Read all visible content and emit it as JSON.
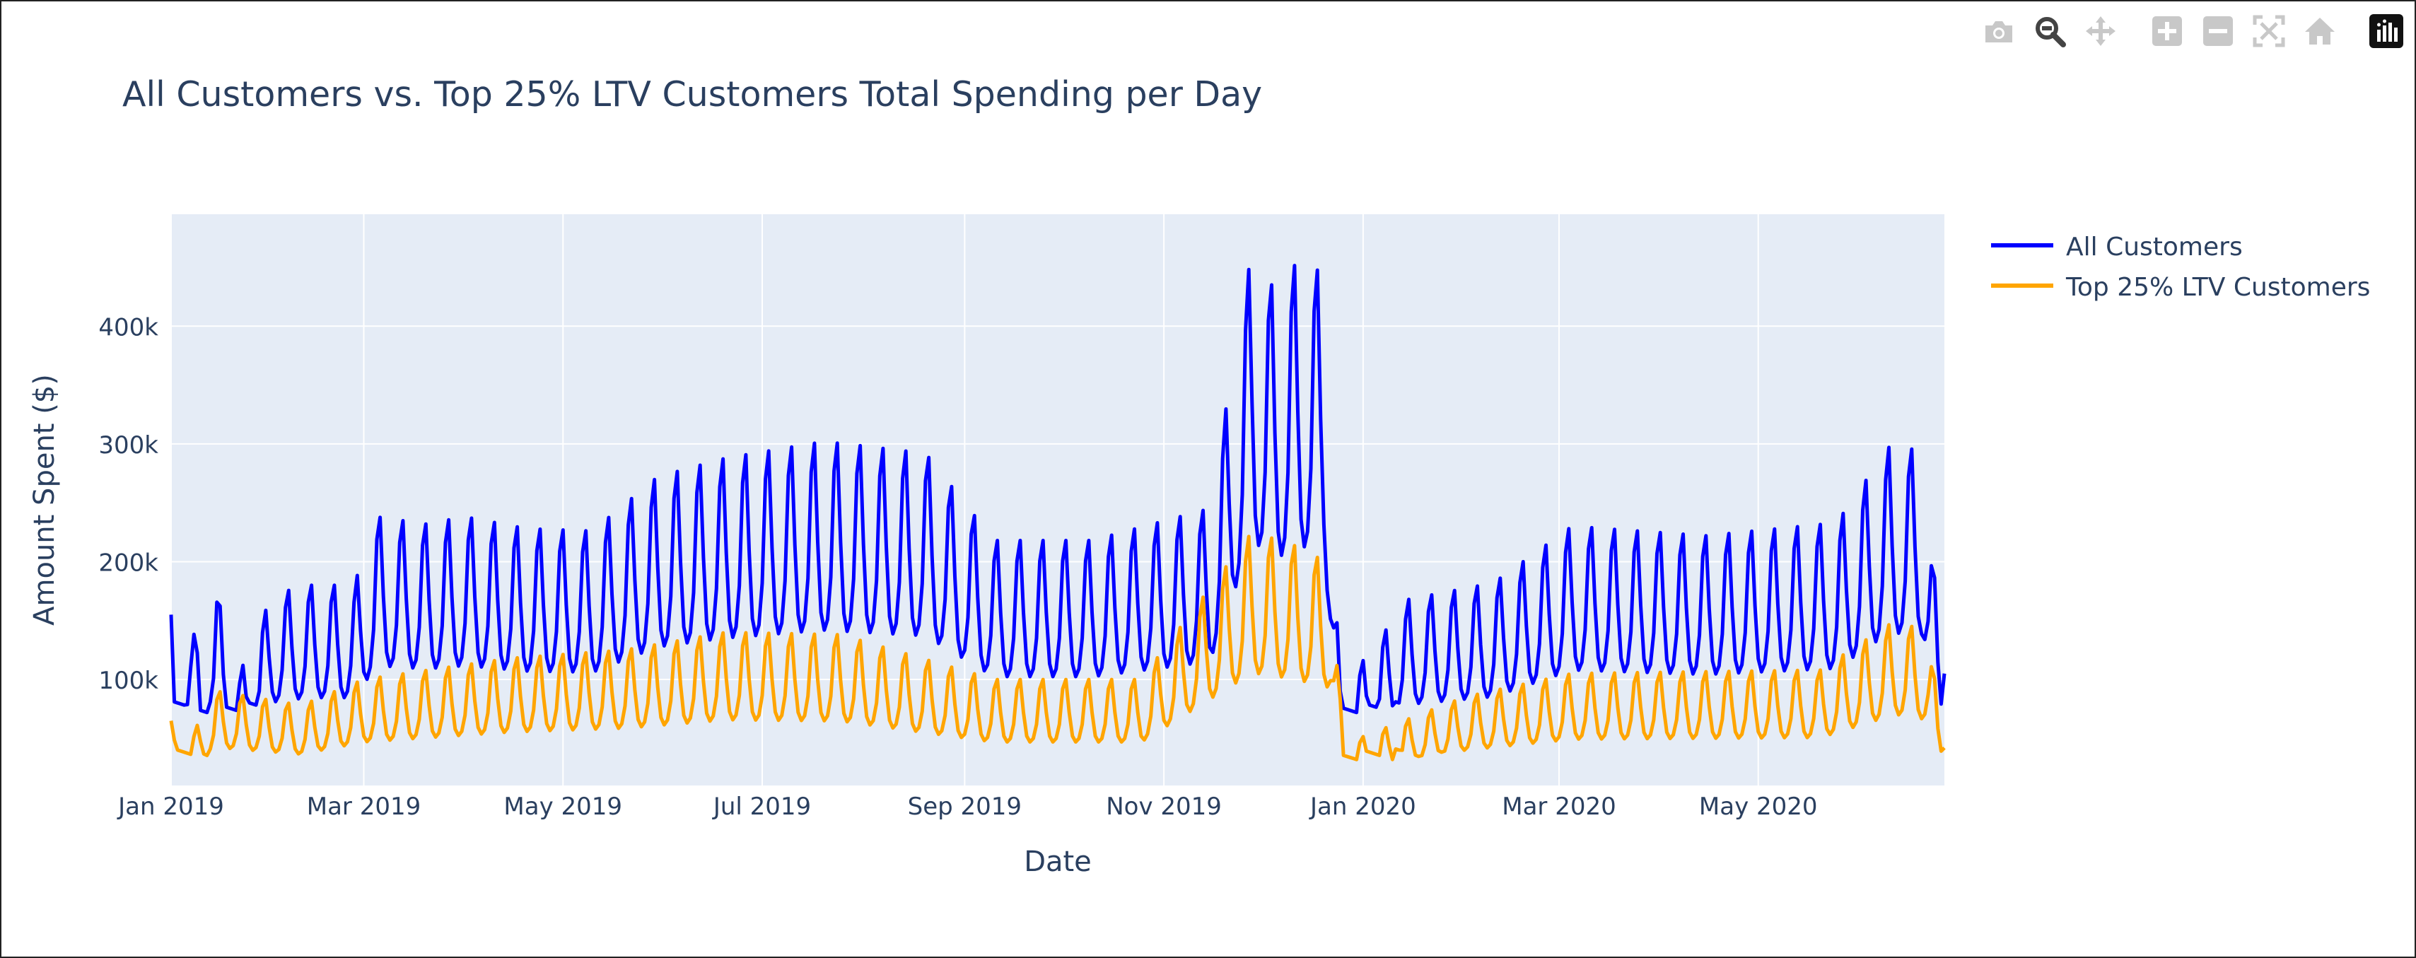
{
  "modebar": {
    "buttons": [
      {
        "icon": "camera-icon",
        "label": "Download plot as a png"
      },
      {
        "icon": "zoom-icon",
        "label": "Zoom"
      },
      {
        "icon": "pan-icon",
        "label": "Pan"
      },
      {
        "icon": "zoom-in-icon",
        "label": "Zoom in"
      },
      {
        "icon": "zoom-out-icon",
        "label": "Zoom out"
      },
      {
        "icon": "autoscale-icon",
        "label": "Autoscale"
      },
      {
        "icon": "reset-axes-icon",
        "label": "Reset axes"
      },
      {
        "icon": "plotly-logo-icon",
        "label": "Produced with Plotly"
      }
    ]
  },
  "chart_data": {
    "type": "line",
    "title": "All Customers vs. Top 25% LTV Customers Total Spending per Day",
    "xlabel": "Date",
    "ylabel": "Amount Spent ($)",
    "xlim": [
      "2019-01-01",
      "2020-06-27"
    ],
    "ylim": [
      10000,
      495000
    ],
    "x_ticks": [
      {
        "date": "2019-01-01",
        "label": "Jan 2019"
      },
      {
        "date": "2019-03-01",
        "label": "Mar 2019"
      },
      {
        "date": "2019-05-01",
        "label": "May 2019"
      },
      {
        "date": "2019-07-01",
        "label": "Jul 2019"
      },
      {
        "date": "2019-09-01",
        "label": "Sep 2019"
      },
      {
        "date": "2019-11-01",
        "label": "Nov 2019"
      },
      {
        "date": "2020-01-01",
        "label": "Jan 2020"
      },
      {
        "date": "2020-03-01",
        "label": "Mar 2020"
      },
      {
        "date": "2020-05-01",
        "label": "May 2020"
      }
    ],
    "y_ticks": [
      {
        "value": 100000,
        "label": "100k"
      },
      {
        "value": 200000,
        "label": "200k"
      },
      {
        "value": 300000,
        "label": "300k"
      },
      {
        "value": 400000,
        "label": "400k"
      }
    ],
    "grid": true,
    "legend_position": "top-right",
    "plot_bgcolor": "#e5ecf6",
    "series": [
      {
        "name": "All Customers",
        "color": "#0000ff",
        "sampled_points": [
          {
            "x": "2019-01-01",
            "y": 155000
          },
          {
            "x": "2019-01-02",
            "y": 75000
          },
          {
            "x": "2019-01-07",
            "y": 178000
          },
          {
            "x": "2019-01-10",
            "y": 95000
          },
          {
            "x": "2019-01-15",
            "y": 180000
          },
          {
            "x": "2019-01-20",
            "y": 92000
          },
          {
            "x": "2019-02-01",
            "y": 172000
          },
          {
            "x": "2019-02-12",
            "y": 180000
          },
          {
            "x": "2019-02-26",
            "y": 180000
          },
          {
            "x": "2019-03-05",
            "y": 238000
          },
          {
            "x": "2019-03-20",
            "y": 232000
          },
          {
            "x": "2019-04-01",
            "y": 238000
          },
          {
            "x": "2019-04-20",
            "y": 228000
          },
          {
            "x": "2019-05-10",
            "y": 226000
          },
          {
            "x": "2019-05-30",
            "y": 272000
          },
          {
            "x": "2019-06-20",
            "y": 288000
          },
          {
            "x": "2019-07-20",
            "y": 302000
          },
          {
            "x": "2019-08-20",
            "y": 292000
          },
          {
            "x": "2019-09-10",
            "y": 218000
          },
          {
            "x": "2019-10-10",
            "y": 218000
          },
          {
            "x": "2019-11-15",
            "y": 245000
          },
          {
            "x": "2019-11-28",
            "y": 465000
          },
          {
            "x": "2019-12-05",
            "y": 430000
          },
          {
            "x": "2019-12-12",
            "y": 455000
          },
          {
            "x": "2019-12-20",
            "y": 445000
          },
          {
            "x": "2019-12-25",
            "y": 90000
          },
          {
            "x": "2020-01-15",
            "y": 168000
          },
          {
            "x": "2020-02-10",
            "y": 182000
          },
          {
            "x": "2020-03-05",
            "y": 230000
          },
          {
            "x": "2020-04-15",
            "y": 222000
          },
          {
            "x": "2020-05-25",
            "y": 233000
          },
          {
            "x": "2020-06-10",
            "y": 297000
          },
          {
            "x": "2020-06-20",
            "y": 295000
          },
          {
            "x": "2020-06-27",
            "y": 105000
          }
        ]
      },
      {
        "name": "Top 25% LTV Customers",
        "color": "#ffa500",
        "sampled_points": [
          {
            "x": "2019-01-01",
            "y": 65000
          },
          {
            "x": "2019-01-03",
            "y": 32000
          },
          {
            "x": "2019-01-15",
            "y": 90000
          },
          {
            "x": "2019-02-10",
            "y": 78000
          },
          {
            "x": "2019-03-01",
            "y": 100000
          },
          {
            "x": "2019-04-15",
            "y": 118000
          },
          {
            "x": "2019-05-20",
            "y": 125000
          },
          {
            "x": "2019-06-20",
            "y": 140000
          },
          {
            "x": "2019-07-25",
            "y": 138000
          },
          {
            "x": "2019-09-10",
            "y": 100000
          },
          {
            "x": "2019-10-25",
            "y": 100000
          },
          {
            "x": "2019-11-28",
            "y": 225000
          },
          {
            "x": "2019-12-10",
            "y": 215000
          },
          {
            "x": "2019-12-22",
            "y": 198000
          },
          {
            "x": "2019-12-26",
            "y": 45000
          },
          {
            "x": "2020-02-01",
            "y": 85000
          },
          {
            "x": "2020-03-05",
            "y": 105000
          },
          {
            "x": "2020-05-20",
            "y": 108000
          },
          {
            "x": "2020-06-12",
            "y": 150000
          },
          {
            "x": "2020-06-22",
            "y": 140000
          },
          {
            "x": "2020-06-27",
            "y": 42000
          }
        ]
      }
    ]
  }
}
